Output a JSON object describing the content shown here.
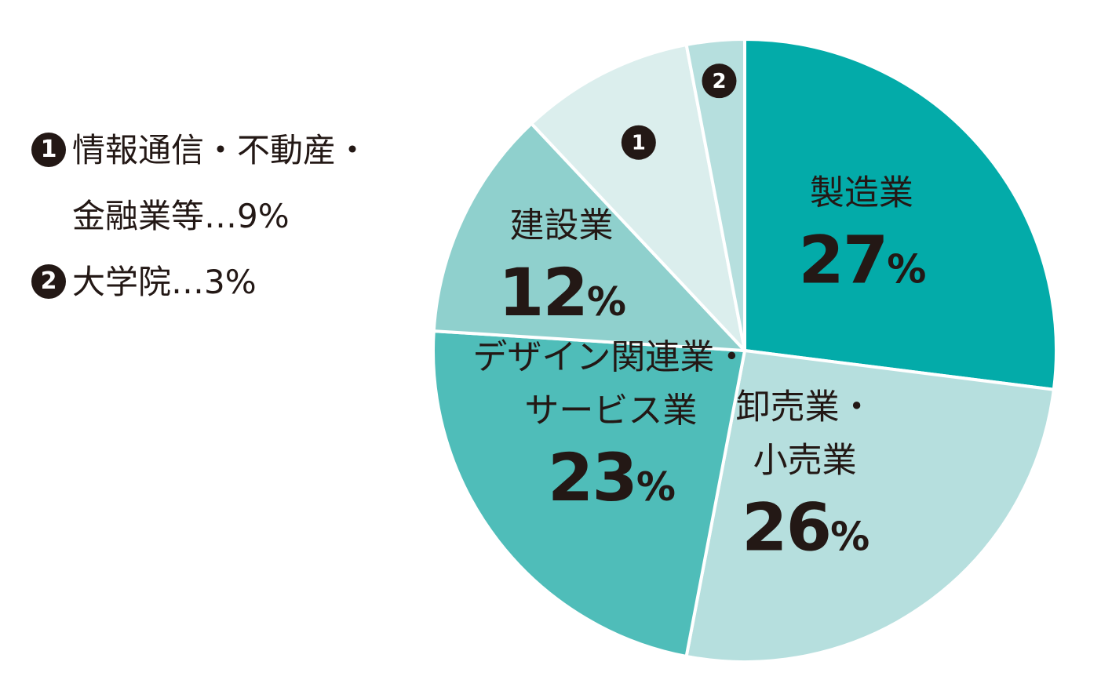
{
  "chart_data": {
    "type": "pie",
    "title": "",
    "slices": [
      {
        "lines": [
          "製造業"
        ],
        "value": 27,
        "display": "27",
        "color": "#03aba9"
      },
      {
        "lines": [
          "卸売業・",
          "小売業"
        ],
        "value": 26,
        "display": "26",
        "color": "#b6dfde"
      },
      {
        "lines": [
          "デザイン関連業・",
          "サービス業"
        ],
        "value": 23,
        "display": "23",
        "color": "#4fbdb9"
      },
      {
        "lines": [
          "建設業"
        ],
        "value": 12,
        "display": "12",
        "color": "#8fd0cd"
      },
      {
        "marker": "1",
        "value": 9,
        "color": "#dbeeed"
      },
      {
        "marker": "2",
        "value": 3,
        "color": "#b6dfde"
      }
    ],
    "unit": "%",
    "legend": [
      {
        "marker": "1",
        "lines": [
          "情報通信・不動産・",
          "金融業等…9%"
        ]
      },
      {
        "marker": "2",
        "lines": [
          "大学院…3%"
        ]
      }
    ],
    "legend_position": "left"
  }
}
